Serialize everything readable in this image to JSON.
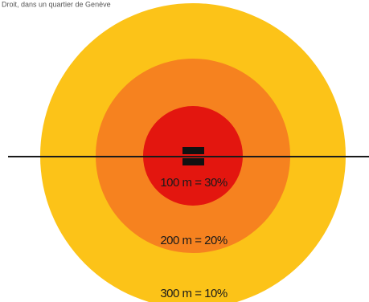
{
  "caption": "Droit, dans un quartier de Genève",
  "zones": [
    {
      "label": "100 m = 30%"
    },
    {
      "label": "200 m = 20%"
    },
    {
      "label": "300 m = 10%"
    }
  ]
}
